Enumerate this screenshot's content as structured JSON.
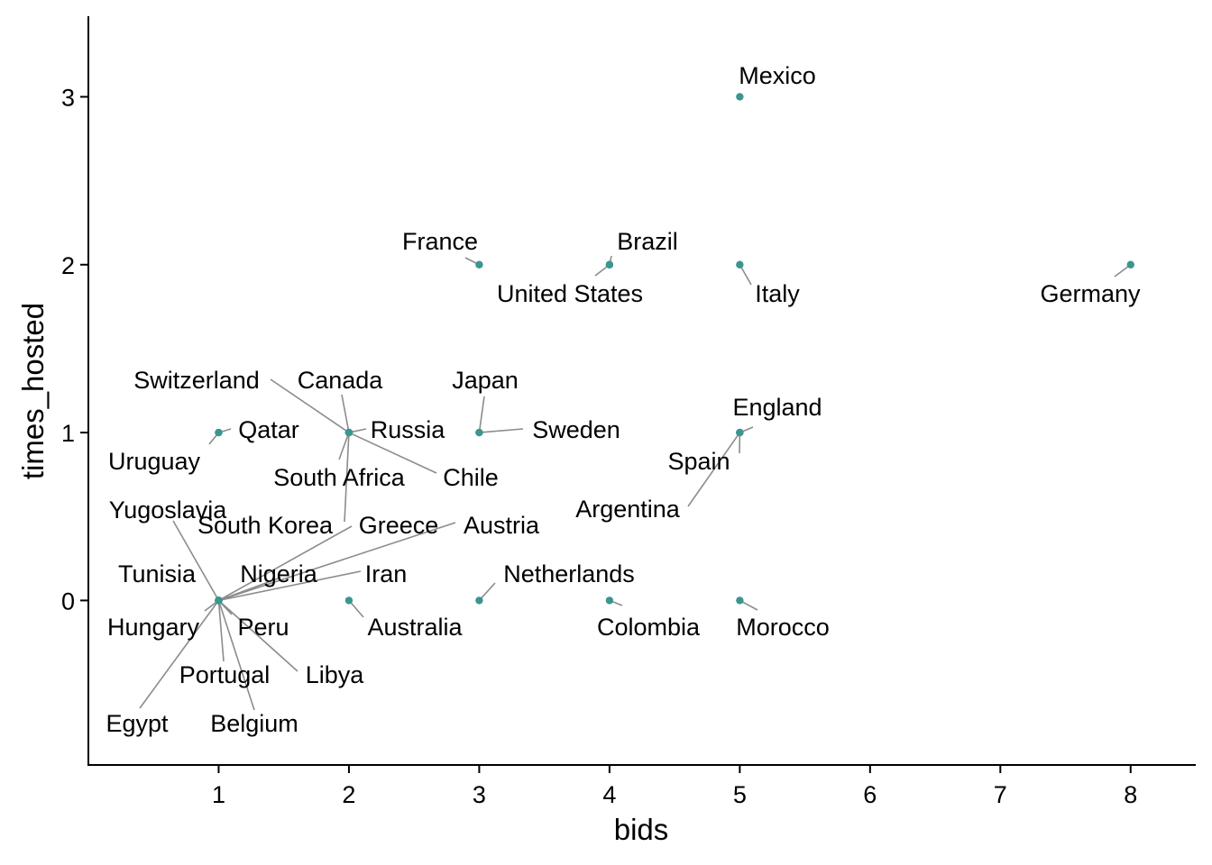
{
  "chart_data": {
    "type": "scatter",
    "xlabel": "bids",
    "ylabel": "times_hosted",
    "xlim": [
      0,
      8.5
    ],
    "ylim": [
      -0.98,
      3.48
    ],
    "x_ticks": [
      1,
      2,
      3,
      4,
      5,
      6,
      7,
      8
    ],
    "y_ticks": [
      0,
      1,
      2,
      3
    ],
    "grid": false,
    "point_color": "#3a968f",
    "leader_color": "#8c8c8c",
    "points": [
      {
        "name": "Mexico",
        "x": 5,
        "y": 3
      },
      {
        "name": "France",
        "x": 3,
        "y": 2
      },
      {
        "name": "Brazil",
        "x": 4,
        "y": 2
      },
      {
        "name": "United States",
        "x": 4,
        "y": 2
      },
      {
        "name": "Italy",
        "x": 5,
        "y": 2
      },
      {
        "name": "Germany",
        "x": 8,
        "y": 2
      },
      {
        "name": "Switzerland",
        "x": 2,
        "y": 1
      },
      {
        "name": "Canada",
        "x": 2,
        "y": 1
      },
      {
        "name": "Russia",
        "x": 2,
        "y": 1
      },
      {
        "name": "South Africa",
        "x": 2,
        "y": 1
      },
      {
        "name": "Chile",
        "x": 2,
        "y": 1
      },
      {
        "name": "South Korea",
        "x": 2,
        "y": 1
      },
      {
        "name": "Qatar",
        "x": 1,
        "y": 1
      },
      {
        "name": "Uruguay",
        "x": 1,
        "y": 1
      },
      {
        "name": "Japan",
        "x": 3,
        "y": 1
      },
      {
        "name": "Sweden",
        "x": 3,
        "y": 1
      },
      {
        "name": "England",
        "x": 5,
        "y": 1
      },
      {
        "name": "Spain",
        "x": 5,
        "y": 1
      },
      {
        "name": "Argentina",
        "x": 5,
        "y": 1
      },
      {
        "name": "Yugoslavia",
        "x": 1,
        "y": 0
      },
      {
        "name": "Greece",
        "x": 1,
        "y": 0
      },
      {
        "name": "Austria",
        "x": 1,
        "y": 0
      },
      {
        "name": "Tunisia",
        "x": 1,
        "y": 0
      },
      {
        "name": "Nigeria",
        "x": 1,
        "y": 0
      },
      {
        "name": "Iran",
        "x": 1,
        "y": 0
      },
      {
        "name": "Hungary",
        "x": 1,
        "y": 0
      },
      {
        "name": "Peru",
        "x": 1,
        "y": 0
      },
      {
        "name": "Portugal",
        "x": 1,
        "y": 0
      },
      {
        "name": "Libya",
        "x": 1,
        "y": 0
      },
      {
        "name": "Egypt",
        "x": 1,
        "y": 0
      },
      {
        "name": "Belgium",
        "x": 1,
        "y": 0
      },
      {
        "name": "Australia",
        "x": 2,
        "y": 0
      },
      {
        "name": "Netherlands",
        "x": 3,
        "y": 0
      },
      {
        "name": "Colombia",
        "x": 4,
        "y": 0
      },
      {
        "name": "Morocco",
        "x": 5,
        "y": 0
      }
    ]
  }
}
